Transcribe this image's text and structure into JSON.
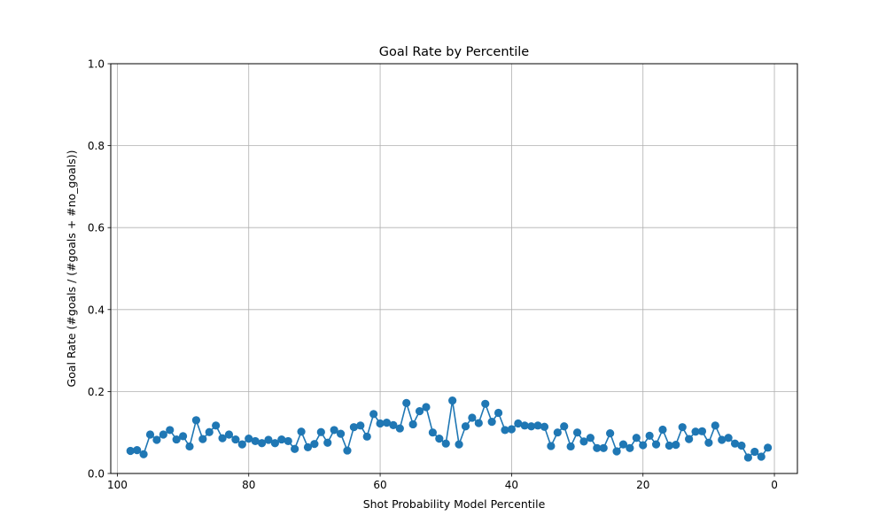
{
  "chart_data": {
    "type": "line",
    "title": "Goal Rate by Percentile",
    "xlabel": "Shot Probability Model Percentile",
    "ylabel": "Goal Rate (#goals / (#goals + #no_goals))",
    "xlim": [
      101,
      -3.5
    ],
    "ylim": [
      0,
      1
    ],
    "x_ticks": [
      100,
      80,
      60,
      40,
      20,
      0
    ],
    "x_tick_labels": [
      "100",
      "80",
      "60",
      "40",
      "20",
      "0"
    ],
    "y_ticks": [
      0,
      0.2,
      0.4,
      0.6,
      0.8,
      1.0
    ],
    "y_tick_labels": [
      "0.0",
      "0.2",
      "0.4",
      "0.6",
      "0.8",
      "1.0"
    ],
    "grid": true,
    "series": [
      {
        "name": "goal rate",
        "color": "#1f77b4",
        "x": [
          98,
          97,
          96,
          95,
          94,
          93,
          92,
          91,
          90,
          89,
          88,
          87,
          86,
          85,
          84,
          83,
          82,
          81,
          80,
          79,
          78,
          77,
          76,
          75,
          74,
          73,
          72,
          71,
          70,
          69,
          68,
          67,
          66,
          65,
          64,
          63,
          62,
          61,
          60,
          59,
          58,
          57,
          56,
          55,
          54,
          53,
          52,
          51,
          50,
          49,
          48,
          47,
          46,
          45,
          44,
          43,
          42,
          41,
          40,
          39,
          38,
          37,
          36,
          35,
          34,
          33,
          32,
          31,
          30,
          29,
          28,
          27,
          26,
          25,
          24,
          23,
          22,
          21,
          20,
          19,
          18,
          17,
          16,
          15,
          14,
          13,
          12,
          11,
          10,
          9,
          8,
          7,
          6,
          5,
          4,
          3,
          2,
          1
        ],
        "values": [
          0.055,
          0.057,
          0.047,
          0.095,
          0.082,
          0.095,
          0.106,
          0.083,
          0.091,
          0.066,
          0.13,
          0.084,
          0.101,
          0.117,
          0.086,
          0.095,
          0.083,
          0.071,
          0.085,
          0.079,
          0.074,
          0.082,
          0.074,
          0.083,
          0.079,
          0.06,
          0.102,
          0.064,
          0.072,
          0.101,
          0.075,
          0.106,
          0.097,
          0.056,
          0.113,
          0.117,
          0.09,
          0.145,
          0.122,
          0.124,
          0.118,
          0.11,
          0.172,
          0.12,
          0.152,
          0.162,
          0.1,
          0.085,
          0.073,
          0.178,
          0.071,
          0.115,
          0.136,
          0.123,
          0.17,
          0.126,
          0.148,
          0.106,
          0.108,
          0.122,
          0.117,
          0.115,
          0.117,
          0.114,
          0.067,
          0.1,
          0.115,
          0.066,
          0.1,
          0.078,
          0.087,
          0.062,
          0.062,
          0.098,
          0.054,
          0.071,
          0.062,
          0.087,
          0.069,
          0.092,
          0.071,
          0.107,
          0.068,
          0.07,
          0.113,
          0.084,
          0.102,
          0.103,
          0.075,
          0.117,
          0.082,
          0.087,
          0.073,
          0.068,
          0.039,
          0.053,
          0.041,
          0.063
        ]
      }
    ]
  }
}
